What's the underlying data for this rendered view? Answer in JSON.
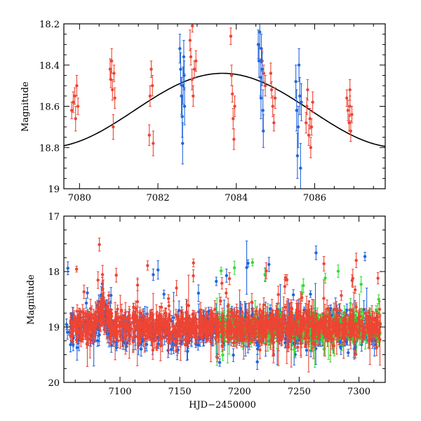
{
  "chart_data": [
    {
      "type": "scatter",
      "title": "",
      "xlabel": "",
      "ylabel": "Magnitude",
      "xlim": [
        7079.6,
        7087.8
      ],
      "ylim": [
        18.2,
        19.0
      ],
      "y_inverted": true,
      "x_ticks": [
        7080,
        7082,
        7084,
        7086
      ],
      "y_ticks": [
        18.2,
        18.4,
        18.6,
        18.8,
        19.0
      ],
      "y_tick_labels": [
        "18.2",
        "18.4",
        "18.6",
        "18.8",
        "19"
      ],
      "model_curve": {
        "type": "sinusoid",
        "color": "#000000",
        "center_x": 7083.65,
        "mean_mag": 18.62,
        "amplitude": 0.18,
        "period": 9.0
      },
      "series": [
        {
          "color": "#ee4433",
          "points": [
            [
              7079.8,
              18.62,
              0.04
            ],
            [
              7079.84,
              18.58,
              0.05
            ],
            [
              7079.88,
              18.55,
              0.04
            ],
            [
              7079.9,
              18.66,
              0.06
            ],
            [
              7079.93,
              18.5,
              0.05
            ],
            [
              7079.96,
              18.6,
              0.04
            ],
            [
              7080.78,
              18.42,
              0.05
            ],
            [
              7080.8,
              18.47,
              0.04
            ],
            [
              7080.82,
              18.38,
              0.06
            ],
            [
              7080.84,
              18.52,
              0.05
            ],
            [
              7080.86,
              18.7,
              0.06
            ],
            [
              7080.88,
              18.44,
              0.04
            ],
            [
              7080.9,
              18.56,
              0.05
            ],
            [
              7081.78,
              18.74,
              0.05
            ],
            [
              7081.8,
              18.55,
              0.05
            ],
            [
              7081.83,
              18.42,
              0.04
            ],
            [
              7081.86,
              18.5,
              0.05
            ],
            [
              7081.88,
              18.78,
              0.06
            ],
            [
              7082.82,
              18.28,
              0.05
            ],
            [
              7082.84,
              18.36,
              0.04
            ],
            [
              7082.87,
              18.47,
              0.05
            ],
            [
              7082.9,
              18.55,
              0.05
            ],
            [
              7082.93,
              18.42,
              0.04
            ],
            [
              7082.97,
              18.38,
              0.05
            ],
            [
              7082.88,
              18.21,
              0.03
            ],
            [
              7083.86,
              18.26,
              0.04
            ],
            [
              7083.88,
              18.45,
              0.05
            ],
            [
              7083.9,
              18.54,
              0.04
            ],
            [
              7083.92,
              18.66,
              0.05
            ],
            [
              7083.94,
              18.76,
              0.05
            ],
            [
              7083.96,
              18.6,
              0.05
            ],
            [
              7084.66,
              18.38,
              0.05
            ],
            [
              7084.7,
              18.44,
              0.04
            ],
            [
              7084.74,
              18.5,
              0.05
            ],
            [
              7084.88,
              18.44,
              0.05
            ],
            [
              7084.9,
              18.52,
              0.04
            ],
            [
              7084.93,
              18.6,
              0.05
            ],
            [
              7084.96,
              18.68,
              0.04
            ],
            [
              7084.99,
              18.56,
              0.05
            ],
            [
              7085.78,
              18.68,
              0.05
            ],
            [
              7085.8,
              18.6,
              0.04
            ],
            [
              7085.82,
              18.52,
              0.05
            ],
            [
              7085.85,
              18.74,
              0.05
            ],
            [
              7085.88,
              18.66,
              0.05
            ],
            [
              7085.9,
              18.8,
              0.05
            ],
            [
              7085.92,
              18.7,
              0.04
            ],
            [
              7085.95,
              18.58,
              0.05
            ],
            [
              7086.82,
              18.56,
              0.04
            ],
            [
              7086.85,
              18.62,
              0.05
            ],
            [
              7086.88,
              18.68,
              0.04
            ],
            [
              7086.9,
              18.6,
              0.05
            ],
            [
              7086.92,
              18.72,
              0.05
            ],
            [
              7086.95,
              18.64,
              0.04
            ],
            [
              7086.9,
              18.52,
              0.05
            ]
          ]
        },
        {
          "color": "#2266dd",
          "points": [
            [
              7082.56,
              18.32,
              0.07
            ],
            [
              7082.58,
              18.42,
              0.08
            ],
            [
              7082.6,
              18.55,
              0.09
            ],
            [
              7082.62,
              18.65,
              0.1
            ],
            [
              7082.63,
              18.78,
              0.1
            ],
            [
              7082.64,
              18.5,
              0.09
            ],
            [
              7082.66,
              18.36,
              0.08
            ],
            [
              7082.67,
              18.45,
              0.07
            ],
            [
              7082.68,
              18.6,
              0.09
            ],
            [
              7084.56,
              18.3,
              0.07
            ],
            [
              7084.58,
              18.38,
              0.08
            ],
            [
              7084.6,
              18.24,
              0.08
            ],
            [
              7084.62,
              18.46,
              0.09
            ],
            [
              7084.63,
              18.56,
              0.1
            ],
            [
              7084.64,
              18.32,
              0.07
            ],
            [
              7084.66,
              18.42,
              0.08
            ],
            [
              7084.68,
              18.62,
              0.1
            ],
            [
              7084.69,
              18.72,
              0.08
            ],
            [
              7085.52,
              18.48,
              0.08
            ],
            [
              7085.54,
              18.62,
              0.1
            ],
            [
              7085.56,
              18.84,
              0.11
            ],
            [
              7085.58,
              18.7,
              0.1
            ],
            [
              7085.6,
              18.4,
              0.08
            ],
            [
              7085.62,
              18.55,
              0.09
            ],
            [
              7085.64,
              18.9,
              0.12
            ],
            [
              7085.66,
              18.58,
              0.09
            ]
          ]
        }
      ]
    },
    {
      "type": "scatter",
      "title": "",
      "xlabel": "HJD−2450000",
      "ylabel": "Magnitude",
      "xlim": [
        7053,
        7322
      ],
      "ylim": [
        17.0,
        20.0
      ],
      "y_inverted": true,
      "x_ticks": [
        7100,
        7150,
        7200,
        7250,
        7300
      ],
      "y_ticks": [
        17,
        18,
        19,
        20
      ],
      "y_tick_labels": [
        "17",
        "18",
        "19",
        "20"
      ],
      "series": [
        {
          "color": "#2266dd",
          "generated": {
            "x_start": 7055,
            "x_end": 7315,
            "count": 700,
            "seed": 11,
            "base_mag": 19.05,
            "scatter": 0.35
          }
        },
        {
          "color": "#33dd33",
          "generated": {
            "x_start": 7180,
            "x_end": 7318,
            "count": 400,
            "seed": 23,
            "base_mag": 19.02,
            "scatter": 0.25
          }
        },
        {
          "color": "#ee4433",
          "generated": {
            "x_start": 7058,
            "x_end": 7318,
            "count": 1100,
            "seed": 37,
            "base_mag": 19.0,
            "scatter": 0.3
          }
        }
      ]
    }
  ]
}
